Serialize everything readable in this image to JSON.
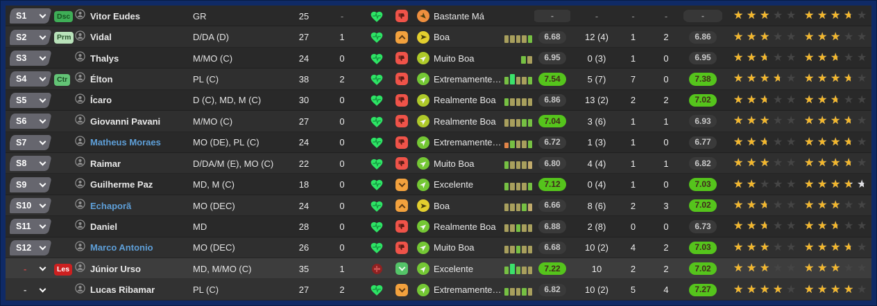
{
  "app": "football-squad-list",
  "colors": {
    "frame_border": "#0f2a66",
    "table_bg": "#262626",
    "rating_good_pill": "#55c41c",
    "linked_player_name": "#5e9fd8",
    "squad_pill": "#66666e",
    "tag_discussion_green": "#3fae57",
    "tag_loan_pale_green": "#b9e2ba",
    "tag_contract_green": "#63c476",
    "tag_injured_red": "#cc2020",
    "condition_heart_green": "#2ee465",
    "morale_bad_red": "#ef5349",
    "morale_mid_orange": "#f2a13d",
    "morale_good_green": "#54c468",
    "star_gold": "#f3b72c",
    "star_uncertain_white": "#dfdfe4"
  },
  "icons": {
    "chevron-down-icon": "expand row dropdown",
    "player-face-icon": "person silhouette in circle",
    "condition-heart-icon": "green heart with pulse line",
    "injury-icon": "red circle with medical cross",
    "morale-thumb-down-icon": "thumbs down in rounded square",
    "morale-chevron-icon": "chevron up/down in rounded square",
    "form-arrow-icon": "navigation arrow in colored circle",
    "star-icon": "rating star"
  },
  "rows": [
    {
      "squad": "S1",
      "squad_style": "pill",
      "tag": "Dsc",
      "name": "Vitor Eudes",
      "name_blue": false,
      "position": "GR",
      "age": "25",
      "stat1": "-",
      "condition": "heart",
      "morale": {
        "type": "thumb-down",
        "color": "red"
      },
      "form": {
        "label": "Bastante Má",
        "circle": "orange",
        "dir": "bad"
      },
      "bars": [],
      "rating": {
        "value": "-",
        "style": "dashp"
      },
      "apps": "-",
      "goals": "-",
      "assists": "-",
      "avg_rating": {
        "value": "-",
        "style": "dashp"
      },
      "stars_ability": {
        "gold": 3
      },
      "stars_potential": {
        "gold": 3.5
      }
    },
    {
      "squad": "S2",
      "squad_style": "pill",
      "tag": "Prm",
      "name": "Vidal",
      "name_blue": false,
      "position": "D/DA (D)",
      "age": "27",
      "stat1": "1",
      "condition": "heart",
      "morale": {
        "type": "chev-up",
        "color": "orange"
      },
      "form": {
        "label": "Boa",
        "circle": "yellow",
        "dir": "ok"
      },
      "bars": [
        "o",
        "o",
        "o",
        "o",
        "g"
      ],
      "rating": {
        "value": "6.68",
        "style": "plain"
      },
      "apps": "12 (4)",
      "goals": "1",
      "assists": "2",
      "avg_rating": {
        "value": "6.86",
        "style": "plain"
      },
      "stars_ability": {
        "gold": 3
      },
      "stars_potential": {
        "gold": 3
      }
    },
    {
      "squad": "S3",
      "squad_style": "pill",
      "tag": null,
      "name": "Thalys",
      "name_blue": false,
      "position": "M/MO (C)",
      "age": "24",
      "stat1": "0",
      "condition": "heart",
      "morale": {
        "type": "thumb-down",
        "color": "red"
      },
      "form": {
        "label": "Muito Boa",
        "circle": "yellowgreen",
        "dir": "good"
      },
      "bars": [
        "g",
        "o"
      ],
      "rating": {
        "value": "6.95",
        "style": "plain"
      },
      "apps": "0 (3)",
      "goals": "1",
      "assists": "0",
      "avg_rating": {
        "value": "6.95",
        "style": "plain"
      },
      "stars_ability": {
        "gold": 2.5
      },
      "stars_potential": {
        "gold": 2.5
      }
    },
    {
      "squad": "S4",
      "squad_style": "pill",
      "tag": "Ctr",
      "name": "Élton",
      "name_blue": false,
      "position": "PL (C)",
      "age": "38",
      "stat1": "2",
      "condition": "heart",
      "morale": {
        "type": "thumb-down",
        "color": "red"
      },
      "form": {
        "label": "Extremamente…",
        "circle": "green",
        "dir": "exc"
      },
      "bars": [
        "g",
        "G",
        "o",
        "o",
        "g"
      ],
      "rating": {
        "value": "7.54",
        "style": "green"
      },
      "apps": "5 (7)",
      "goals": "7",
      "assists": "0",
      "avg_rating": {
        "value": "7.38",
        "style": "green"
      },
      "stars_ability": {
        "gold": 3.5
      },
      "stars_potential": {
        "gold": 3.5
      }
    },
    {
      "squad": "S5",
      "squad_style": "pill",
      "tag": null,
      "name": "Ícaro",
      "name_blue": false,
      "position": "D (C), MD, M (C)",
      "age": "30",
      "stat1": "0",
      "condition": "heart",
      "morale": {
        "type": "thumb-down",
        "color": "red"
      },
      "form": {
        "label": "Realmente Boa",
        "circle": "yellowgreen",
        "dir": "good"
      },
      "bars": [
        "g",
        "o",
        "o",
        "o",
        "o"
      ],
      "rating": {
        "value": "6.86",
        "style": "plain"
      },
      "apps": "13 (2)",
      "goals": "2",
      "assists": "2",
      "avg_rating": {
        "value": "7.02",
        "style": "green"
      },
      "stars_ability": {
        "gold": 2.5
      },
      "stars_potential": {
        "gold": 2.5
      }
    },
    {
      "squad": "S6",
      "squad_style": "pill",
      "tag": null,
      "name": "Giovanni Pavani",
      "name_blue": false,
      "position": "M/MO (C)",
      "age": "27",
      "stat1": "0",
      "condition": "heart",
      "morale": {
        "type": "thumb-down",
        "color": "red"
      },
      "form": {
        "label": "Realmente Boa",
        "circle": "yellowgreen",
        "dir": "good"
      },
      "bars": [
        "o",
        "o",
        "o",
        "g",
        "g"
      ],
      "rating": {
        "value": "7.04",
        "style": "green"
      },
      "apps": "3 (6)",
      "goals": "1",
      "assists": "1",
      "avg_rating": {
        "value": "6.93",
        "style": "plain"
      },
      "stars_ability": {
        "gold": 3
      },
      "stars_potential": {
        "gold": 3.5
      }
    },
    {
      "squad": "S7",
      "squad_style": "pill",
      "tag": null,
      "name": "Matheus Moraes",
      "name_blue": true,
      "position": "MO (DE), PL (C)",
      "age": "24",
      "stat1": "0",
      "condition": "heart",
      "morale": {
        "type": "thumb-down",
        "color": "red"
      },
      "form": {
        "label": "Extremamente…",
        "circle": "green",
        "dir": "exc"
      },
      "bars": [
        "r",
        "g",
        "o",
        "o",
        "g"
      ],
      "rating": {
        "value": "6.72",
        "style": "plain"
      },
      "apps": "1 (3)",
      "goals": "1",
      "assists": "0",
      "avg_rating": {
        "value": "6.77",
        "style": "plain"
      },
      "stars_ability": {
        "gold": 2.5
      },
      "stars_potential": {
        "gold": 3.5
      }
    },
    {
      "squad": "S8",
      "squad_style": "pill",
      "tag": null,
      "name": "Raimar",
      "name_blue": false,
      "position": "D/DA/M (E), MO (C)",
      "age": "22",
      "stat1": "0",
      "condition": "heart",
      "morale": {
        "type": "thumb-down",
        "color": "red"
      },
      "form": {
        "label": "Muito Boa",
        "circle": "green",
        "dir": "good"
      },
      "bars": [
        "g",
        "o",
        "o",
        "o",
        "t"
      ],
      "rating": {
        "value": "6.80",
        "style": "plain"
      },
      "apps": "4 (4)",
      "goals": "1",
      "assists": "1",
      "avg_rating": {
        "value": "6.82",
        "style": "plain"
      },
      "stars_ability": {
        "gold": 3
      },
      "stars_potential": {
        "gold": 3.5
      }
    },
    {
      "squad": "S9",
      "squad_style": "pill",
      "tag": null,
      "name": "Guilherme Paz",
      "name_blue": false,
      "position": "MD, M (C)",
      "age": "18",
      "stat1": "0",
      "condition": "heart",
      "morale": {
        "type": "chev-down",
        "color": "orange"
      },
      "form": {
        "label": "Excelente",
        "circle": "green",
        "dir": "exc"
      },
      "bars": [
        "g",
        "o",
        "o",
        "o",
        "g"
      ],
      "rating": {
        "value": "7.12",
        "style": "green"
      },
      "apps": "0 (4)",
      "goals": "1",
      "assists": "0",
      "avg_rating": {
        "value": "7.03",
        "style": "green"
      },
      "stars_ability": {
        "gold": 2
      },
      "stars_potential": {
        "gold": 3.5,
        "white": 4.5
      }
    },
    {
      "squad": "S10",
      "squad_style": "pill",
      "tag": null,
      "name": "Echaporã",
      "name_blue": true,
      "position": "MO (DEC)",
      "age": "24",
      "stat1": "0",
      "condition": "heart",
      "morale": {
        "type": "chev-up",
        "color": "orange"
      },
      "form": {
        "label": "Boa",
        "circle": "yellow",
        "dir": "ok"
      },
      "bars": [
        "o",
        "o",
        "o",
        "g",
        "t"
      ],
      "rating": {
        "value": "6.66",
        "style": "plain"
      },
      "apps": "8 (6)",
      "goals": "2",
      "assists": "3",
      "avg_rating": {
        "value": "7.02",
        "style": "green"
      },
      "stars_ability": {
        "gold": 2.5
      },
      "stars_potential": {
        "gold": 3
      }
    },
    {
      "squad": "S11",
      "squad_style": "pill",
      "tag": null,
      "name": "Daniel",
      "name_blue": false,
      "position": "MD",
      "age": "28",
      "stat1": "0",
      "condition": "heart",
      "morale": {
        "type": "thumb-down",
        "color": "red"
      },
      "form": {
        "label": "Realmente Boa",
        "circle": "green",
        "dir": "good"
      },
      "bars": [
        "o",
        "o",
        "g",
        "o",
        "o"
      ],
      "rating": {
        "value": "6.88",
        "style": "plain"
      },
      "apps": "2 (8)",
      "goals": "0",
      "assists": "0",
      "avg_rating": {
        "value": "6.73",
        "style": "plain"
      },
      "stars_ability": {
        "gold": 2.5
      },
      "stars_potential": {
        "gold": 2.5
      }
    },
    {
      "squad": "S12",
      "squad_style": "pill",
      "tag": null,
      "name": "Marco Antonio",
      "name_blue": true,
      "position": "MO (DEC)",
      "age": "26",
      "stat1": "0",
      "condition": "heart",
      "morale": {
        "type": "thumb-down",
        "color": "red"
      },
      "form": {
        "label": "Muito Boa",
        "circle": "green",
        "dir": "good"
      },
      "bars": [
        "o",
        "o",
        "g",
        "o",
        "o"
      ],
      "rating": {
        "value": "6.68",
        "style": "plain"
      },
      "apps": "10 (2)",
      "goals": "4",
      "assists": "2",
      "avg_rating": {
        "value": "7.03",
        "style": "green"
      },
      "stars_ability": {
        "gold": 3
      },
      "stars_potential": {
        "gold": 3.5
      }
    },
    {
      "squad": "-",
      "squad_style": "dash-red",
      "tag": "Les",
      "name": "Júnior Urso",
      "name_blue": false,
      "position": "MD, M/MO (C)",
      "age": "35",
      "stat1": "1",
      "condition": "injury",
      "morale": {
        "type": "chev-down",
        "color": "green"
      },
      "form": {
        "label": "Excelente",
        "circle": "green",
        "dir": "exc"
      },
      "bars": [
        "g",
        "G",
        "g",
        "o",
        "o"
      ],
      "rating": {
        "value": "7.22",
        "style": "green"
      },
      "apps": "10",
      "goals": "2",
      "assists": "2",
      "avg_rating": {
        "value": "7.02",
        "style": "green"
      },
      "stars_ability": {
        "gold": 3
      },
      "stars_potential": {
        "gold": 3
      }
    },
    {
      "squad": "-",
      "squad_style": "dash",
      "tag": null,
      "name": "Lucas Ribamar",
      "name_blue": false,
      "position": "PL (C)",
      "age": "27",
      "stat1": "2",
      "condition": "heart",
      "morale": {
        "type": "chev-down",
        "color": "orange"
      },
      "form": {
        "label": "Extremamente…",
        "circle": "green",
        "dir": "exc"
      },
      "bars": [
        "g",
        "o",
        "o",
        "g",
        "o"
      ],
      "rating": {
        "value": "6.82",
        "style": "plain"
      },
      "apps": "10 (2)",
      "goals": "5",
      "assists": "4",
      "avg_rating": {
        "value": "7.27",
        "style": "green"
      },
      "stars_ability": {
        "gold": 4
      },
      "stars_potential": {
        "gold": 4
      }
    }
  ]
}
